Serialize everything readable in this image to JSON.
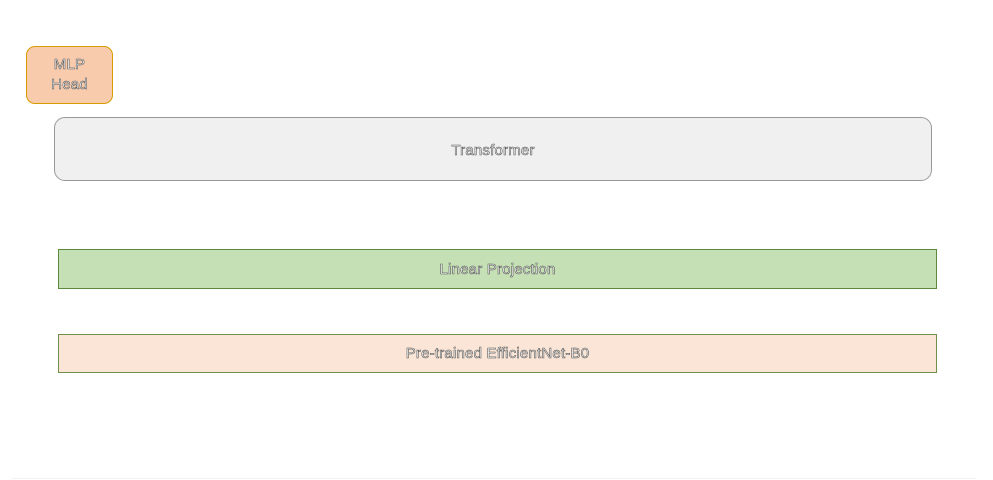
{
  "diagram": {
    "mlp_head": {
      "line1": "MLP",
      "line2": "Head"
    },
    "transformer": {
      "label": "Transformer"
    },
    "linear_projection": {
      "label": "Linear Projection"
    },
    "backbone": {
      "label": "Pre-trained EfficientNet-B0"
    }
  },
  "colors": {
    "mlp_head_fill": "#f8cbad",
    "mlp_head_border": "#d79b00",
    "transformer_fill": "#f0f0f0",
    "transformer_border": "#999999",
    "linear_projection_fill": "#c5e0b4",
    "linear_projection_border": "#5b8a3c",
    "backbone_fill": "#fbe5d6",
    "backbone_border": "#6f8f4a"
  }
}
